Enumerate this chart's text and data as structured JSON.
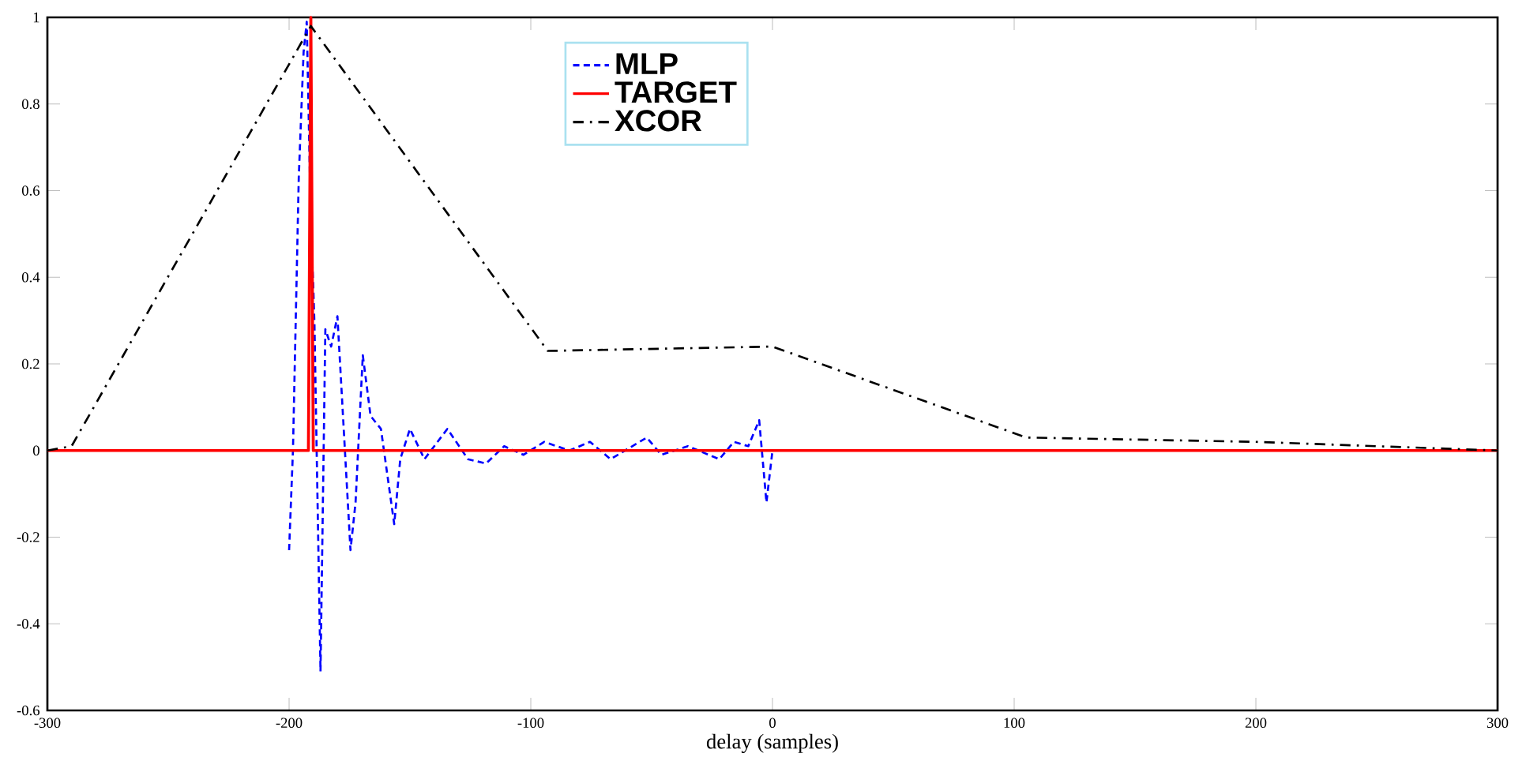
{
  "chart_data": {
    "type": "line",
    "xlabel": "delay (samples)",
    "xlim": [
      -300,
      300
    ],
    "xticks": [
      -300,
      -200,
      -100,
      0,
      100,
      200,
      300
    ],
    "ylim": [
      -0.6,
      1
    ],
    "yticks": [
      -0.6,
      -0.4,
      -0.2,
      0,
      0.2,
      0.4,
      0.6,
      0.8,
      1
    ],
    "legend": "top",
    "grid": false,
    "marker": "none",
    "series": [
      {
        "name": "MLP",
        "color": "#0000ff",
        "line_style": "dashed",
        "x": [
          -200,
          -198.4,
          -196,
          -194,
          -192.7,
          -191,
          -190,
          -189.5,
          -187,
          -185,
          -182.6,
          -180,
          -174.6,
          -172.5,
          -169.5,
          -166.3,
          -162,
          -156.5,
          -154,
          -150,
          -144,
          -134.5,
          -126,
          -118.5,
          -111,
          -103,
          -94.5,
          -84,
          -75.5,
          -67,
          -52,
          -46,
          -35,
          -22,
          -16,
          -10,
          -5.5,
          -2.5,
          0
        ],
        "values": [
          -0.23,
          0,
          0.63,
          0.92,
          0.99,
          0.53,
          0.38,
          0.29,
          -0.51,
          0.28,
          0.24,
          0.31,
          -0.23,
          -0.12,
          0.22,
          0.08,
          0.05,
          -0.17,
          -0.02,
          0.05,
          -0.02,
          0.05,
          -0.02,
          -0.03,
          0.01,
          -0.01,
          0.02,
          0,
          0.02,
          -0.02,
          0.03,
          -0.01,
          0.01,
          -0.02,
          0.02,
          0.01,
          0.07,
          -0.12,
          0
        ]
      },
      {
        "name": "TARGET",
        "color": "#ff0000",
        "line_style": "solid",
        "x": [
          -300,
          -192,
          -191,
          -190,
          300
        ],
        "values": [
          0,
          0,
          1,
          0,
          0
        ]
      },
      {
        "name": "XCOR",
        "color": "#000000",
        "line_style": "dashdot",
        "x": [
          -300,
          -290,
          -191,
          -93,
          0,
          105,
          200,
          300
        ],
        "values": [
          0,
          0.01,
          0.98,
          0.23,
          0.24,
          0.03,
          0.02,
          0
        ]
      }
    ]
  }
}
